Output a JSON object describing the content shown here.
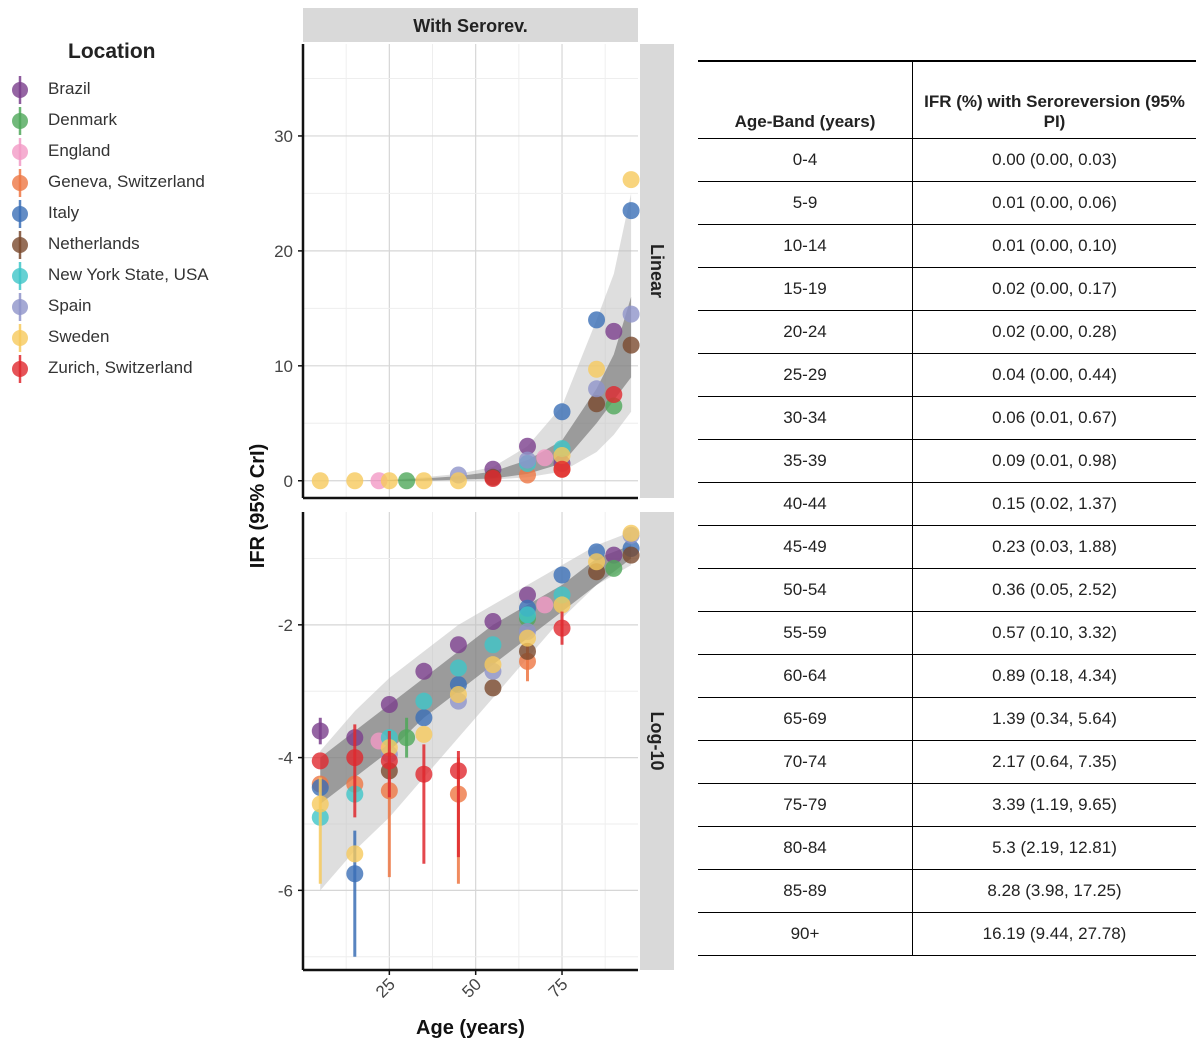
{
  "legend": {
    "title": "Location",
    "items": [
      {
        "label": "Brazil",
        "color": "#7B3F8C"
      },
      {
        "label": "Denmark",
        "color": "#4FA75A"
      },
      {
        "label": "England",
        "color": "#F29AC6"
      },
      {
        "label": "Geneva, Switzerland",
        "color": "#EE7744"
      },
      {
        "label": "Italy",
        "color": "#3B6FB6"
      },
      {
        "label": "Netherlands",
        "color": "#7A4A2E"
      },
      {
        "label": "New York State, USA",
        "color": "#3FC6C8"
      },
      {
        "label": "Spain",
        "color": "#8F93C9"
      },
      {
        "label": "Sweden",
        "color": "#F6C95C"
      },
      {
        "label": "Zurich, Switzerland",
        "color": "#E0282E"
      }
    ]
  },
  "chart_data": {
    "type": "scatter",
    "strip_top": "With Serorev.",
    "xlabel": "Age (years)",
    "ylabel": "IFR (95% CrI)",
    "x_ticks": [
      25,
      50,
      75
    ],
    "xlim": [
      0,
      97
    ],
    "panels": [
      {
        "strip": "Linear",
        "ylim": [
          -1.5,
          38
        ],
        "y_ticks": [
          0,
          10,
          20,
          30
        ],
        "band_outer": {
          "x": [
            5,
            15,
            25,
            35,
            45,
            55,
            65,
            75,
            85,
            90,
            95
          ],
          "lo": [
            0,
            0,
            0,
            0,
            0,
            0.1,
            0.3,
            0.8,
            2.5,
            4,
            6
          ],
          "hi": [
            0,
            0,
            0.1,
            0.3,
            0.6,
            1.2,
            3,
            6.5,
            14,
            18,
            25
          ]
        },
        "band_inner": {
          "x": [
            5,
            15,
            25,
            35,
            45,
            55,
            65,
            75,
            85,
            90,
            95
          ],
          "lo": [
            0,
            0,
            0,
            0,
            0.1,
            0.2,
            0.6,
            1.5,
            5,
            7,
            9
          ],
          "hi": [
            0,
            0,
            0.05,
            0.2,
            0.4,
            0.8,
            1.8,
            3.5,
            8,
            11,
            16
          ]
        },
        "points": [
          {
            "s": 0,
            "x": 55,
            "y": 1.0
          },
          {
            "s": 0,
            "x": 65,
            "y": 3.0
          },
          {
            "s": 0,
            "x": 75,
            "y": 1.5
          },
          {
            "s": 0,
            "x": 90,
            "y": 13.0
          },
          {
            "s": 1,
            "x": 30,
            "y": 0
          },
          {
            "s": 1,
            "x": 90,
            "y": 6.5
          },
          {
            "s": 2,
            "x": 22,
            "y": 0
          },
          {
            "s": 2,
            "x": 70,
            "y": 2.0
          },
          {
            "s": 3,
            "x": 65,
            "y": 0.5
          },
          {
            "s": 3,
            "x": 75,
            "y": 1.0
          },
          {
            "s": 4,
            "x": 75,
            "y": 6.0
          },
          {
            "s": 4,
            "x": 85,
            "y": 14.0
          },
          {
            "s": 4,
            "x": 95,
            "y": 23.5
          },
          {
            "s": 5,
            "x": 55,
            "y": 0.3
          },
          {
            "s": 5,
            "x": 85,
            "y": 6.7
          },
          {
            "s": 5,
            "x": 95,
            "y": 11.8
          },
          {
            "s": 6,
            "x": 65,
            "y": 1.5
          },
          {
            "s": 6,
            "x": 75,
            "y": 2.8
          },
          {
            "s": 7,
            "x": 45,
            "y": 0.5
          },
          {
            "s": 7,
            "x": 65,
            "y": 1.8
          },
          {
            "s": 7,
            "x": 85,
            "y": 8.0
          },
          {
            "s": 7,
            "x": 95,
            "y": 14.5
          },
          {
            "s": 8,
            "x": 5,
            "y": 0
          },
          {
            "s": 8,
            "x": 15,
            "y": 0
          },
          {
            "s": 8,
            "x": 25,
            "y": 0
          },
          {
            "s": 8,
            "x": 35,
            "y": 0
          },
          {
            "s": 8,
            "x": 45,
            "y": 0
          },
          {
            "s": 8,
            "x": 75,
            "y": 2.2
          },
          {
            "s": 8,
            "x": 85,
            "y": 9.7
          },
          {
            "s": 8,
            "x": 95,
            "y": 26.2
          },
          {
            "s": 9,
            "x": 55,
            "y": 0.2
          },
          {
            "s": 9,
            "x": 75,
            "y": 1.0
          },
          {
            "s": 9,
            "x": 90,
            "y": 7.5
          }
        ]
      },
      {
        "strip": "Log-10",
        "ylim": [
          -7.2,
          -0.3
        ],
        "y_ticks": [
          -6,
          -4,
          -2
        ],
        "band_outer": {
          "x": [
            5,
            15,
            25,
            35,
            45,
            55,
            65,
            75,
            85,
            95
          ],
          "lo": [
            -6.0,
            -5.4,
            -4.9,
            -4.3,
            -3.7,
            -3.1,
            -2.5,
            -1.9,
            -1.4,
            -1.1
          ],
          "hi": [
            -3.9,
            -3.3,
            -2.8,
            -2.4,
            -2.0,
            -1.7,
            -1.4,
            -1.1,
            -0.8,
            -0.6
          ]
        },
        "band_inner": {
          "x": [
            5,
            15,
            25,
            35,
            45,
            55,
            65,
            75,
            85,
            95
          ],
          "lo": [
            -4.7,
            -4.3,
            -3.9,
            -3.4,
            -3.0,
            -2.6,
            -2.2,
            -1.8,
            -1.4,
            -1.0
          ],
          "hi": [
            -4.0,
            -3.6,
            -3.2,
            -2.8,
            -2.4,
            -2.0,
            -1.7,
            -1.4,
            -1.0,
            -0.8
          ]
        },
        "points": [
          {
            "s": 0,
            "x": 5,
            "y": -3.6,
            "lo": -3.8,
            "hi": -3.4
          },
          {
            "s": 0,
            "x": 15,
            "y": -3.7
          },
          {
            "s": 0,
            "x": 25,
            "y": -3.2
          },
          {
            "s": 0,
            "x": 35,
            "y": -2.7
          },
          {
            "s": 0,
            "x": 45,
            "y": -2.3
          },
          {
            "s": 0,
            "x": 55,
            "y": -1.95
          },
          {
            "s": 0,
            "x": 65,
            "y": -1.55
          },
          {
            "s": 0,
            "x": 90,
            "y": -0.95
          },
          {
            "s": 1,
            "x": 30,
            "y": -3.7,
            "lo": -4.0,
            "hi": -3.4
          },
          {
            "s": 1,
            "x": 65,
            "y": -1.9
          },
          {
            "s": 1,
            "x": 90,
            "y": -1.15
          },
          {
            "s": 2,
            "x": 22,
            "y": -3.75
          },
          {
            "s": 2,
            "x": 70,
            "y": -1.7
          },
          {
            "s": 3,
            "x": 5,
            "y": -4.4
          },
          {
            "s": 3,
            "x": 15,
            "y": -4.4
          },
          {
            "s": 3,
            "x": 25,
            "y": -4.5,
            "lo": -5.8,
            "hi": -3.8
          },
          {
            "s": 3,
            "x": 45,
            "y": -4.55,
            "lo": -5.9,
            "hi": -4.0
          },
          {
            "s": 3,
            "x": 65,
            "y": -2.55,
            "lo": -2.85,
            "hi": -2.3
          },
          {
            "s": 4,
            "x": 5,
            "y": -4.45
          },
          {
            "s": 4,
            "x": 15,
            "y": -5.75,
            "lo": -7.0,
            "hi": -5.1
          },
          {
            "s": 4,
            "x": 35,
            "y": -3.4
          },
          {
            "s": 4,
            "x": 45,
            "y": -2.9
          },
          {
            "s": 4,
            "x": 65,
            "y": -1.75
          },
          {
            "s": 4,
            "x": 75,
            "y": -1.25
          },
          {
            "s": 4,
            "x": 85,
            "y": -0.9
          },
          {
            "s": 4,
            "x": 95,
            "y": -0.85
          },
          {
            "s": 5,
            "x": 25,
            "y": -4.2
          },
          {
            "s": 5,
            "x": 55,
            "y": -2.95
          },
          {
            "s": 5,
            "x": 65,
            "y": -2.4
          },
          {
            "s": 5,
            "x": 85,
            "y": -1.2
          },
          {
            "s": 5,
            "x": 95,
            "y": -0.95
          },
          {
            "s": 6,
            "x": 5,
            "y": -4.9
          },
          {
            "s": 6,
            "x": 15,
            "y": -4.55
          },
          {
            "s": 6,
            "x": 25,
            "y": -3.7
          },
          {
            "s": 6,
            "x": 35,
            "y": -3.15
          },
          {
            "s": 6,
            "x": 45,
            "y": -2.65
          },
          {
            "s": 6,
            "x": 55,
            "y": -2.3
          },
          {
            "s": 6,
            "x": 65,
            "y": -1.85
          },
          {
            "s": 6,
            "x": 75,
            "y": -1.55
          },
          {
            "s": 7,
            "x": 25,
            "y": -3.95
          },
          {
            "s": 7,
            "x": 45,
            "y": -3.15
          },
          {
            "s": 7,
            "x": 55,
            "y": -2.7
          },
          {
            "s": 7,
            "x": 65,
            "y": -2.1
          },
          {
            "s": 7,
            "x": 95,
            "y": -0.65
          },
          {
            "s": 8,
            "x": 5,
            "y": -4.7,
            "lo": -5.9,
            "hi": -4.3
          },
          {
            "s": 8,
            "x": 15,
            "y": -5.45
          },
          {
            "s": 8,
            "x": 25,
            "y": -3.85
          },
          {
            "s": 8,
            "x": 35,
            "y": -3.65
          },
          {
            "s": 8,
            "x": 45,
            "y": -3.05
          },
          {
            "s": 8,
            "x": 55,
            "y": -2.6
          },
          {
            "s": 8,
            "x": 65,
            "y": -2.2
          },
          {
            "s": 8,
            "x": 75,
            "y": -1.7
          },
          {
            "s": 8,
            "x": 85,
            "y": -1.05
          },
          {
            "s": 8,
            "x": 95,
            "y": -0.62
          },
          {
            "s": 9,
            "x": 5,
            "y": -4.05
          },
          {
            "s": 9,
            "x": 15,
            "y": -4.0,
            "lo": -4.9,
            "hi": -3.5
          },
          {
            "s": 9,
            "x": 25,
            "y": -4.05,
            "lo": -4.6,
            "hi": -3.6
          },
          {
            "s": 9,
            "x": 35,
            "y": -4.25,
            "lo": -5.6,
            "hi": -3.8
          },
          {
            "s": 9,
            "x": 45,
            "y": -4.2,
            "lo": -5.5,
            "hi": -3.9
          },
          {
            "s": 9,
            "x": 75,
            "y": -2.05,
            "lo": -2.3,
            "hi": -1.8
          }
        ]
      }
    ]
  },
  "table": {
    "headers": [
      "Age-Band (years)",
      "IFR (%) with Seroreversion (95% PI)"
    ],
    "rows": [
      [
        "0-4",
        "0.00 (0.00, 0.03)"
      ],
      [
        "5-9",
        "0.01 (0.00, 0.06)"
      ],
      [
        "10-14",
        "0.01 (0.00, 0.10)"
      ],
      [
        "15-19",
        "0.02 (0.00, 0.17)"
      ],
      [
        "20-24",
        "0.02 (0.00, 0.28)"
      ],
      [
        "25-29",
        "0.04 (0.00, 0.44)"
      ],
      [
        "30-34",
        "0.06 (0.01, 0.67)"
      ],
      [
        "35-39",
        "0.09 (0.01, 0.98)"
      ],
      [
        "40-44",
        "0.15 (0.02, 1.37)"
      ],
      [
        "45-49",
        "0.23 (0.03, 1.88)"
      ],
      [
        "50-54",
        "0.36 (0.05, 2.52)"
      ],
      [
        "55-59",
        "0.57 (0.10, 3.32)"
      ],
      [
        "60-64",
        "0.89 (0.18, 4.34)"
      ],
      [
        "65-69",
        "1.39 (0.34, 5.64)"
      ],
      [
        "70-74",
        "2.17 (0.64, 7.35)"
      ],
      [
        "75-79",
        "3.39 (1.19, 9.65)"
      ],
      [
        "80-84",
        "5.3 (2.19, 12.81)"
      ],
      [
        "85-89",
        "8.28 (3.98, 17.25)"
      ],
      [
        "90+",
        "16.19 (9.44, 27.78)"
      ]
    ]
  }
}
